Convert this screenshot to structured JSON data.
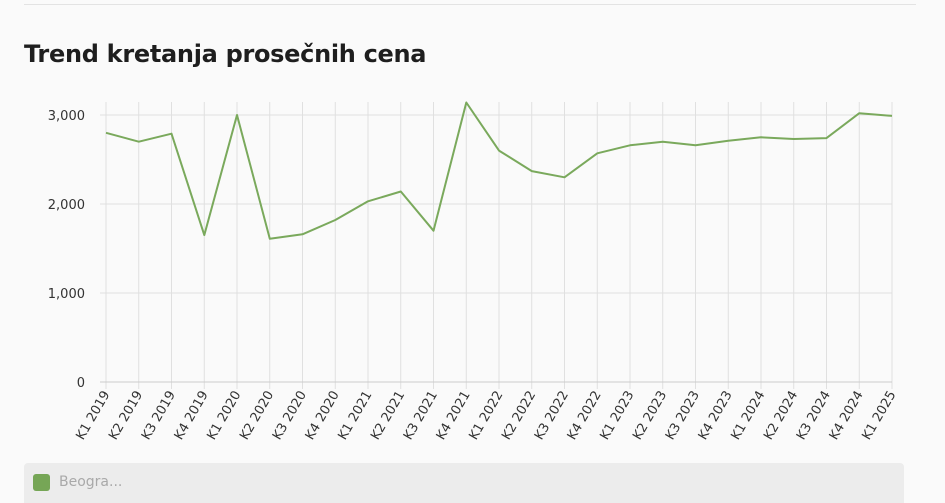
{
  "title": "Trend kretanja prosečnih cena",
  "colors": {
    "line": "#7aa95c",
    "legend_swatch": "#76a656",
    "grid": "#e0e0e0",
    "axis": "#cccccc"
  },
  "legend": {
    "label": "Beogra..."
  },
  "chart_data": {
    "type": "line",
    "title": "Trend kretanja prosečnih cena",
    "xlabel": "",
    "ylabel": "",
    "ylim": [
      0,
      3000
    ],
    "yticks": [
      0,
      1000,
      2000,
      3000
    ],
    "ytick_labels": [
      "0",
      "1,000",
      "2,000",
      "3,000"
    ],
    "grid": true,
    "legend_position": "bottom",
    "categories": [
      "K1 2019",
      "K2 2019",
      "K3 2019",
      "K4 2019",
      "K1 2020",
      "K2 2020",
      "K3 2020",
      "K4 2020",
      "K1 2021",
      "K2 2021",
      "K3 2021",
      "K4 2021",
      "K1 2022",
      "K2 2022",
      "K3 2022",
      "K4 2022",
      "K1 2023",
      "K2 2023",
      "K3 2023",
      "K4 2023",
      "K1 2024",
      "K2 2024",
      "K3 2024",
      "K4 2024",
      "K1 2025"
    ],
    "series": [
      {
        "name": "Beogra...",
        "values": [
          2800,
          2700,
          2790,
          1650,
          3000,
          1610,
          1660,
          1820,
          2030,
          2140,
          1700,
          3140,
          2600,
          2370,
          2300,
          2570,
          2660,
          2700,
          2660,
          2710,
          2750,
          2730,
          2740,
          3020,
          2990
        ]
      }
    ]
  }
}
